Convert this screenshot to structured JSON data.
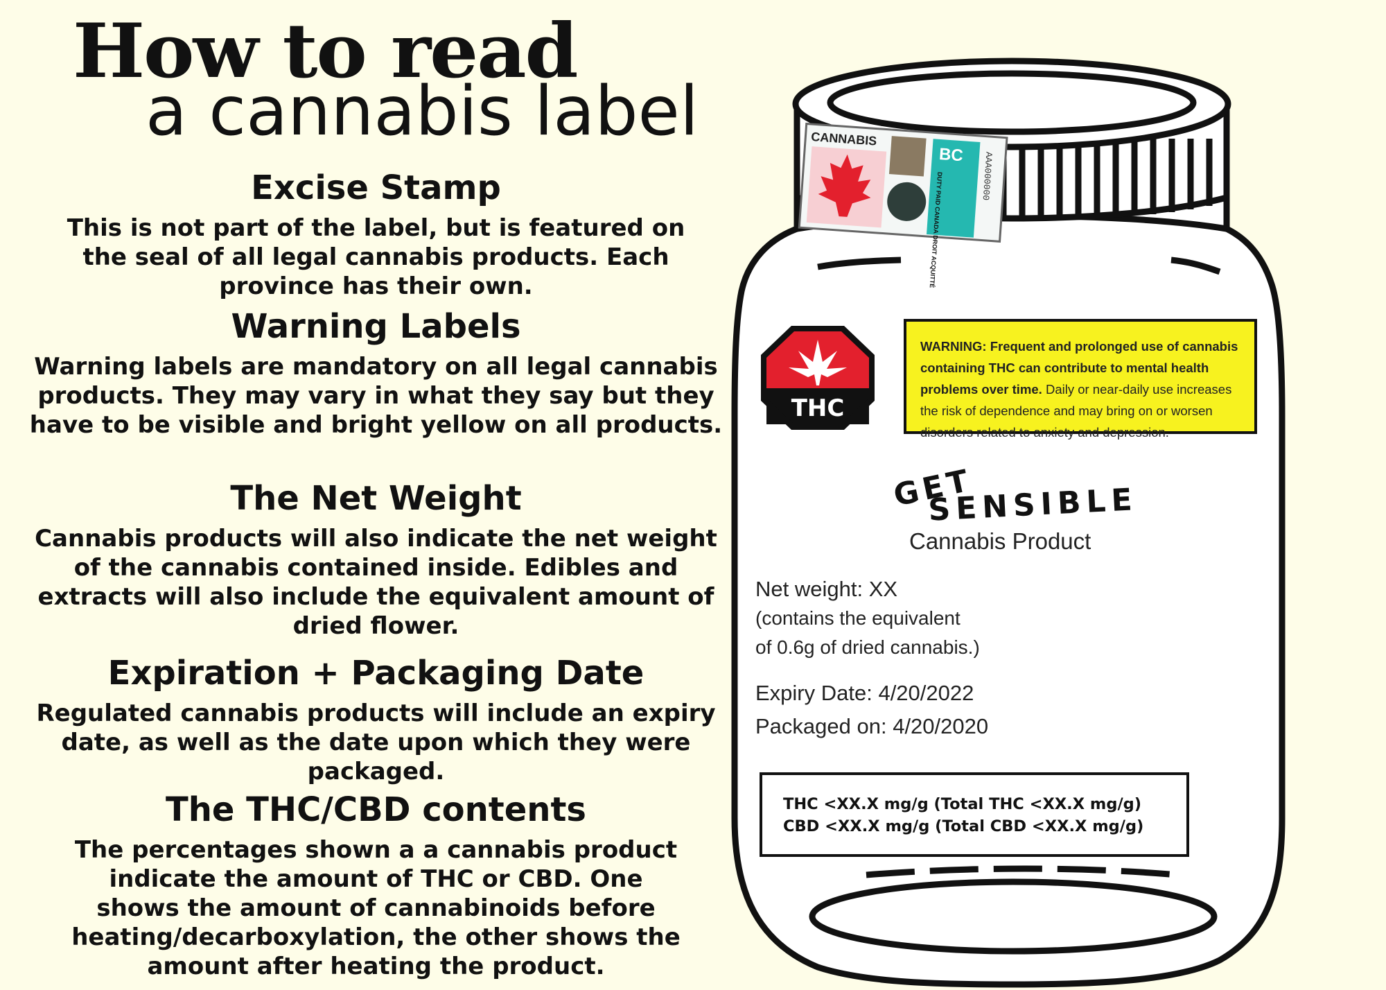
{
  "title": {
    "line1": "How to read",
    "line2": "a cannabis label"
  },
  "sections": [
    {
      "heading": "Excise Stamp",
      "body": "This is not part of the label, but is featured on the seal of all legal cannabis products. Each province has their own."
    },
    {
      "heading": "Warning Labels",
      "body": "Warning labels are mandatory on all legal cannabis products. They may vary in what they say but they have to be visible and bright yellow on all products."
    },
    {
      "heading": "The Net Weight",
      "body": "Cannabis products will also indicate the net weight of the cannabis contained inside. Edibles and extracts will also include the equivalent amount of dried flower."
    },
    {
      "heading": "Expiration + Packaging Date",
      "body": "Regulated cannabis products will include an expiry date, as well as the date upon which they were packaged."
    },
    {
      "heading": "The THC/CBD contents",
      "body": "The percentages shown a a cannabis product indicate the amount of THC or CBD. One shows the amount of cannabinoids before heating/decarboxylation, the other shows the amount after heating the product."
    }
  ],
  "stamp": {
    "word": "CANNABIS",
    "province": "BC",
    "duty": "DUTY PAID CANADA DROIT ACQUITTÉ",
    "serial": "AAA000000"
  },
  "thc_symbol": {
    "text": "THC"
  },
  "warning": {
    "bold": "WARNING: Frequent and prolonged use of cannabis containing THC can contribute to mental health problems over time.",
    "regular": "Daily or near-daily use increases the risk of dependence and may bring on or worsen disorders related to anxiety and depression."
  },
  "brand": {
    "line1": "GET",
    "line2": "SENSIBLE",
    "subtitle": "Cannabis Product"
  },
  "product": {
    "net_weight": "Net weight: XX",
    "equiv_1": "(contains the equivalent",
    "equiv_2": "of 0.6g of dried cannabis.)",
    "expiry": "Expiry Date: 4/20/2022",
    "packaged": "Packaged on: 4/20/2020"
  },
  "potency": {
    "thc": "THC <XX.X mg/g (Total THC <XX.X mg/g)",
    "cbd": "CBD <XX.X mg/g (Total CBD <XX.X mg/g)"
  },
  "colors": {
    "background": "#fefde8",
    "warning": "#f7f21f",
    "thc_red": "#e3202d",
    "stamp_teal": "#25b8b0"
  }
}
